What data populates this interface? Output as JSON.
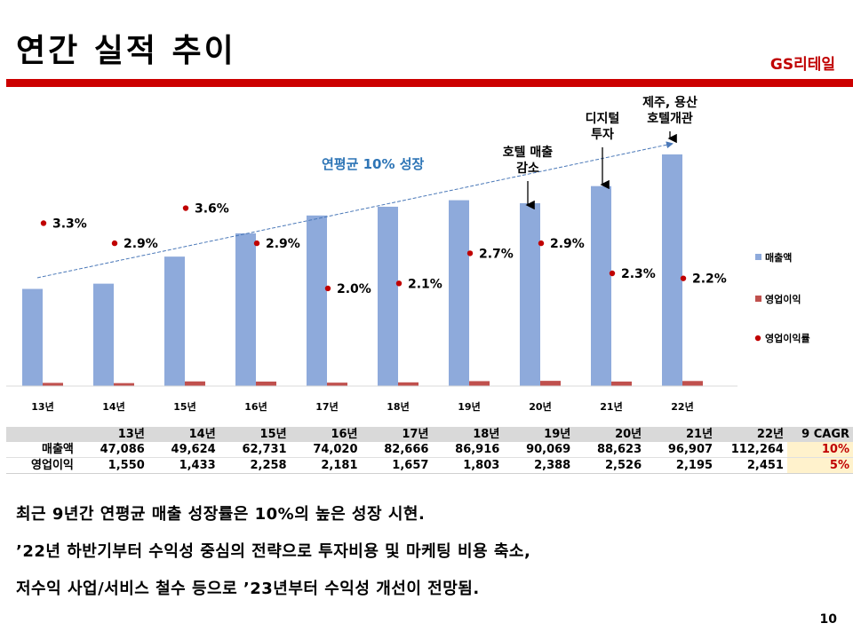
{
  "header": {
    "title": "연간 실적 추이",
    "brand": "GS리테일"
  },
  "chart_data": {
    "type": "bar",
    "title": "",
    "categories": [
      "13년",
      "14년",
      "15년",
      "16년",
      "17년",
      "18년",
      "19년",
      "20년",
      "21년",
      "22년"
    ],
    "series": [
      {
        "name": "매출액",
        "type": "bar",
        "color": "#8eaadb",
        "values": [
          47086,
          49624,
          62731,
          74020,
          82666,
          86916,
          90069,
          88623,
          96907,
          112264
        ]
      },
      {
        "name": "영업이익",
        "type": "bar",
        "color": "#c0504d",
        "values": [
          1550,
          1433,
          2258,
          2181,
          1657,
          1803,
          2388,
          2526,
          2195,
          2451
        ]
      },
      {
        "name": "영업이익률",
        "type": "scatter",
        "color": "#c00000",
        "values": [
          3.3,
          2.9,
          3.6,
          2.9,
          2.0,
          2.1,
          2.7,
          2.9,
          2.3,
          2.2
        ],
        "labels": [
          "3.3%",
          "2.9%",
          "3.6%",
          "2.9%",
          "2.0%",
          "2.1%",
          "2.7%",
          "2.9%",
          "2.3%",
          "2.2%"
        ]
      }
    ],
    "ylim": [
      0,
      120000
    ],
    "rate_ylim": [
      0,
      4.6
    ],
    "xlabel": "",
    "ylabel": "",
    "grid": false,
    "legend_position": "right",
    "trend_label": "연평균 10% 성장",
    "annotations": [
      {
        "text_lines": [
          "호텔 매출",
          "감소"
        ],
        "category": "20년"
      },
      {
        "text_lines": [
          "디지털",
          "투자"
        ],
        "category": "21년"
      },
      {
        "text_lines": [
          "제주, 용산",
          "호텔개관"
        ],
        "category": "22년"
      }
    ]
  },
  "table": {
    "header": [
      "",
      "13년",
      "14년",
      "15년",
      "16년",
      "17년",
      "18년",
      "19년",
      "20년",
      "21년",
      "22년",
      "9 CAGR"
    ],
    "rows": [
      {
        "label": "매출액",
        "values": [
          "47,086",
          "49,624",
          "62,731",
          "74,020",
          "82,666",
          "86,916",
          "90,069",
          "88,623",
          "96,907",
          "112,264"
        ],
        "cagr": "10%"
      },
      {
        "label": "영업이익",
        "values": [
          "1,550",
          "1,433",
          "2,258",
          "2,181",
          "1,657",
          "1,803",
          "2,388",
          "2,526",
          "2,195",
          "2,451"
        ],
        "cagr": "5%"
      }
    ]
  },
  "bullets": [
    "최근 9년간 연평균 매출 성장률은 10%의 높은 성장 시현.",
    "’22년 하반기부터 수익성 중심의 전략으로 투자비용 및 마케팅 비용 축소,",
    "저수익 사업/서비스 철수 등으로 ’23년부터 수익성 개선이 전망됨."
  ],
  "page_number": "10"
}
